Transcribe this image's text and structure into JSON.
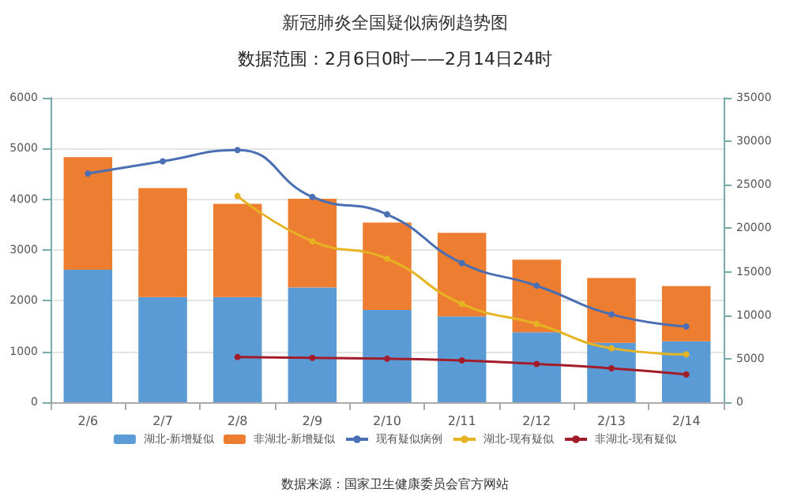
{
  "chart_data": {
    "type": "bar",
    "title": "新冠肺炎全国疑似病例趋势图",
    "subtitle": "数据范围：2月6日0时——2月14日24时",
    "annotations": [
      "数据来源：国家卫生健康委员会官方网站"
    ],
    "categories": [
      "2/6",
      "2/7",
      "2/8",
      "2/9",
      "2/10",
      "2/11",
      "2/12",
      "2/13",
      "2/14"
    ],
    "stacked": true,
    "grid": "y",
    "legend": "bottom",
    "marker": "circle",
    "ylim": [
      0,
      6000
    ],
    "yticks": [
      0,
      1000,
      2000,
      3000,
      4000,
      5000,
      6000
    ],
    "y2lim": [
      0,
      35000
    ],
    "y2ticks": [
      0,
      5000,
      10000,
      15000,
      20000,
      25000,
      30000,
      35000
    ],
    "series": [
      {
        "name": "湖北-新增疑似",
        "color": "#5b9bd5",
        "values": [
          2610,
          2070,
          2070,
          2260,
          1820,
          1690,
          1380,
          1170,
          1200
        ]
      },
      {
        "name": "非湖北-新增疑似",
        "color": "#ed7d31",
        "values": [
          2220,
          2150,
          1840,
          1750,
          1720,
          1650,
          1430,
          1280,
          1090
        ]
      },
      {
        "name": "现有疑似病例",
        "type": "line",
        "axis": "y2",
        "color": "#4a6fb5",
        "values": [
          26300,
          27700,
          29000,
          23600,
          21600,
          16000,
          13400,
          10100,
          8700
        ]
      },
      {
        "name": "湖北-现有疑似",
        "type": "line",
        "axis": "y2",
        "color": "#e6b422",
        "values": [
          null,
          null,
          23700,
          18500,
          16500,
          11300,
          9000,
          6200,
          5500
        ]
      },
      {
        "name": "非湖北-现有疑似",
        "type": "line",
        "axis": "y2",
        "color": "#a31c2a",
        "values": [
          null,
          null,
          5200,
          5100,
          5000,
          4800,
          4400,
          3900,
          3200
        ]
      }
    ]
  }
}
